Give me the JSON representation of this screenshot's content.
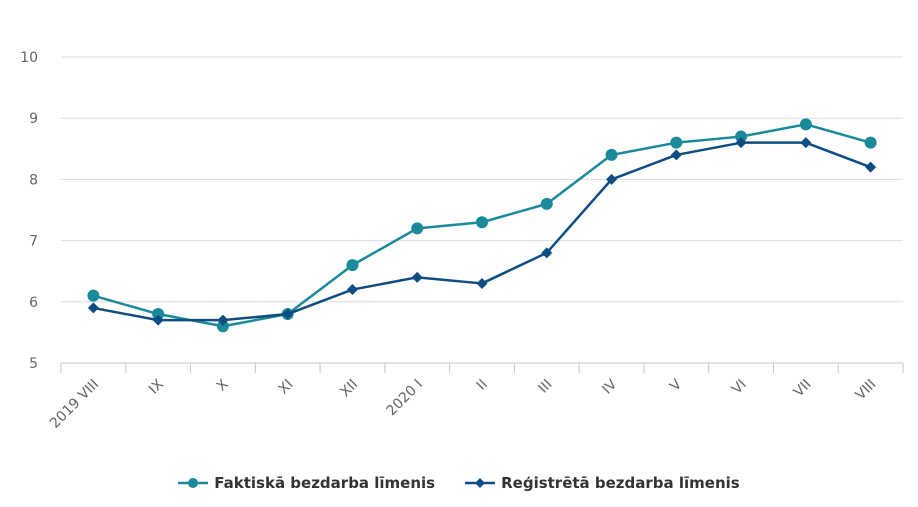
{
  "chart_data": {
    "type": "line",
    "categories": [
      "2019 VIII",
      "IX",
      "X",
      "XI",
      "XII",
      "2020 I",
      "II",
      "III",
      "IV",
      "V",
      "VI",
      "VII",
      "VIII"
    ],
    "ylim": [
      5,
      10
    ],
    "yticks": [
      5,
      6,
      7,
      8,
      9,
      10
    ],
    "grid": true,
    "legend_position": "bottom",
    "series": [
      {
        "name": "Faktiskā bezdarba līmenis",
        "color": "#1a8a9a",
        "marker": "circle",
        "values": [
          6.1,
          5.8,
          5.6,
          5.8,
          6.6,
          7.2,
          7.3,
          7.6,
          8.4,
          8.6,
          8.7,
          8.9,
          8.6
        ]
      },
      {
        "name": "Reģistrētā bezdarba līmenis",
        "color": "#0f4c81",
        "marker": "diamond",
        "values": [
          5.9,
          5.7,
          5.7,
          5.8,
          6.2,
          6.4,
          6.3,
          6.8,
          8.0,
          8.4,
          8.6,
          8.6,
          8.2
        ]
      }
    ]
  }
}
